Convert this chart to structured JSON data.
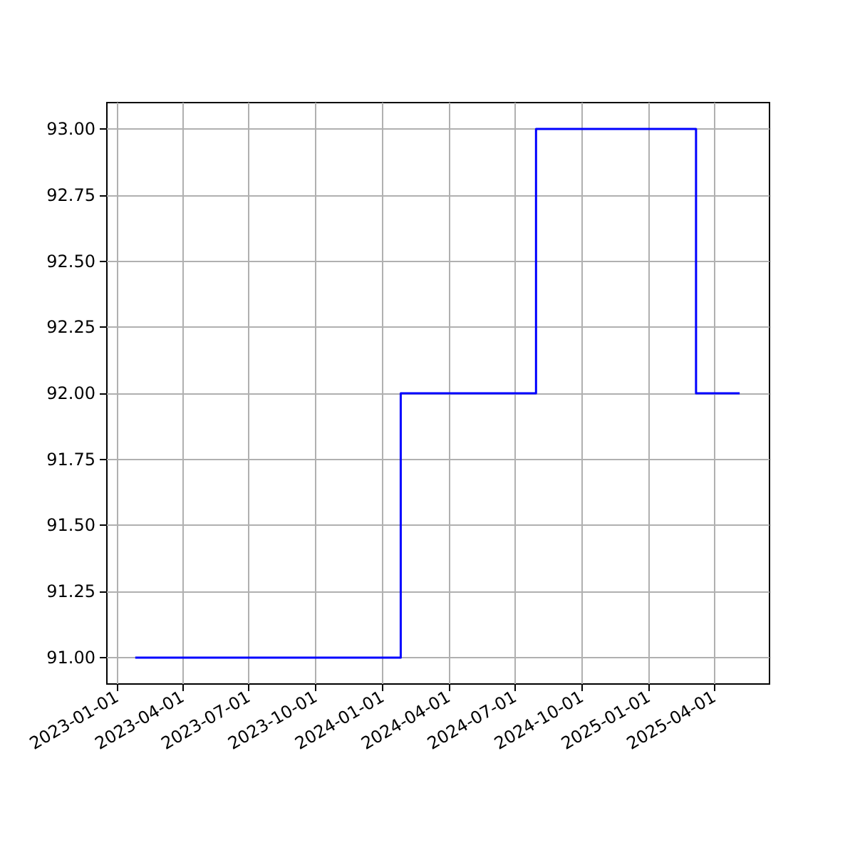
{
  "chart_data": {
    "type": "step",
    "x": [
      "2023-01-26",
      "2024-01-26",
      "2024-07-30",
      "2025-03-07",
      "2025-05-06"
    ],
    "series": [
      {
        "color": "#0000ff",
        "values": [
          91,
          92,
          93,
          92,
          92
        ]
      }
    ],
    "xlim": [
      "2022-12-18",
      "2025-06-16"
    ],
    "xticks": [
      "2023-01-01",
      "2023-04-01",
      "2023-07-01",
      "2023-10-01",
      "2024-01-01",
      "2024-04-01",
      "2024-07-01",
      "2024-10-01",
      "2025-01-01",
      "2025-04-01"
    ],
    "ylim": [
      90.9,
      93.1
    ],
    "yticks": [
      {
        "value": 91,
        "label": "91.00"
      },
      {
        "value": 91.25,
        "label": "91.25"
      },
      {
        "value": 91.5,
        "label": "91.50"
      },
      {
        "value": 91.75,
        "label": "91.75"
      },
      {
        "value": 92,
        "label": "92.00"
      },
      {
        "value": 92.25,
        "label": "92.25"
      },
      {
        "value": 92.5,
        "label": "92.50"
      },
      {
        "value": 92.75,
        "label": "92.75"
      },
      {
        "value": 93,
        "label": "93.00"
      }
    ],
    "grid": true,
    "marker": "none",
    "line_style": "solid"
  }
}
